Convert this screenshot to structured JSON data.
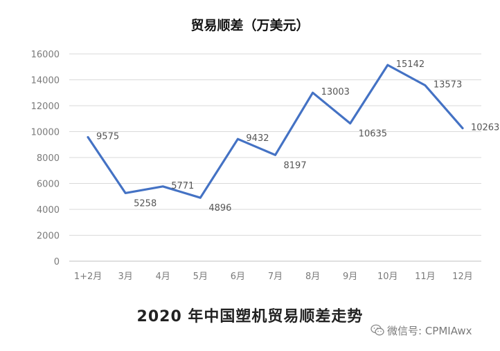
{
  "chart_data": {
    "type": "line",
    "title": "贸易顺差（万美元）",
    "categories": [
      "1+2月",
      "3月",
      "4月",
      "5月",
      "6月",
      "7月",
      "8月",
      "9月",
      "10月",
      "11月",
      "12月"
    ],
    "series": [
      {
        "values": [
          9575,
          5258,
          5771,
          4896,
          9432,
          8197,
          13003,
          10635,
          15142,
          13573,
          10263
        ]
      }
    ],
    "ylim": [
      0,
      16000
    ],
    "yticks": [
      "0",
      "2000",
      "4000",
      "6000",
      "8000",
      "10000",
      "12000",
      "14000",
      "16000"
    ],
    "grid": true,
    "line_color": "#4472c4",
    "caption": "2020 年中国塑机贸易顺差走势"
  },
  "watermark": {
    "text": "微信号: CPMIAwx",
    "icon": "wechat-icon"
  }
}
